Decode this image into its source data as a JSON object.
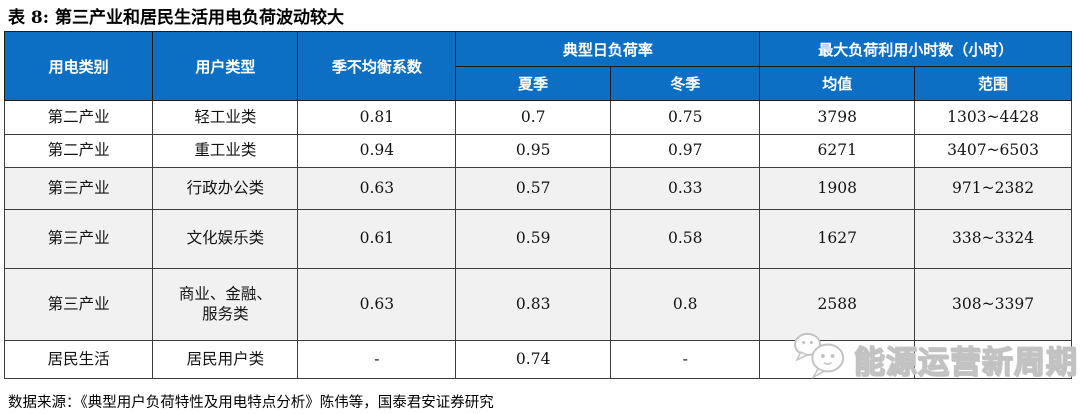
{
  "title": "表 8: 第三产业和居民生活用电负荷波动较大",
  "table": {
    "header": {
      "col_category": "用电类别",
      "col_user_type": "用户类型",
      "col_seasonal_coeff": "季不均衡系数",
      "group_typical_daily_load": "典型日负荷率",
      "group_max_load_hours": "最大负荷利用小时数（小时）",
      "sub_summer": "夏季",
      "sub_winter": "冬季",
      "sub_mean": "均值",
      "sub_range": "范围"
    },
    "rows": [
      {
        "category": "第二产业",
        "user_type": "轻工业类",
        "seasonal": "0.81",
        "summer": "0.7",
        "winter": "0.75",
        "mean": "3798",
        "range": "1303~4428",
        "shaded": false
      },
      {
        "category": "第二产业",
        "user_type": "重工业类",
        "seasonal": "0.94",
        "summer": "0.95",
        "winter": "0.97",
        "mean": "6271",
        "range": "3407~6503",
        "shaded": false
      },
      {
        "category": "第三产业",
        "user_type": "行政办公类",
        "seasonal": "0.63",
        "summer": "0.57",
        "winter": "0.33",
        "mean": "1908",
        "range": "971~2382",
        "shaded": true
      },
      {
        "category": "第三产业",
        "user_type": "文化娱乐类",
        "seasonal": "0.61",
        "summer": "0.59",
        "winter": "0.58",
        "mean": "1627",
        "range": "338~3324",
        "shaded": true
      },
      {
        "category": "第三产业",
        "user_type": "商业、金融、\n服务类",
        "seasonal": "0.63",
        "summer": "0.83",
        "winter": "0.8",
        "mean": "2588",
        "range": "308~3397",
        "shaded": true
      },
      {
        "category": "居民生活",
        "user_type": "居民用户类",
        "seasonal": "-",
        "summer": "0.74",
        "winter": "-",
        "mean": "",
        "range": "",
        "shaded": false
      }
    ]
  },
  "source": "数据来源：《典型用户负荷特性及用电特点分析》陈伟等，国泰君安证券研究",
  "watermark": {
    "text": "能源运营新周期",
    "icon": "wechat-chat-bubbles-icon"
  },
  "colors": {
    "header_bg": "#0d6fc3",
    "header_text": "#ffffff",
    "shaded_row_bg": "#f1f1f1",
    "border": "#3d3d3d",
    "watermark_gray": "#c2c2c2"
  }
}
